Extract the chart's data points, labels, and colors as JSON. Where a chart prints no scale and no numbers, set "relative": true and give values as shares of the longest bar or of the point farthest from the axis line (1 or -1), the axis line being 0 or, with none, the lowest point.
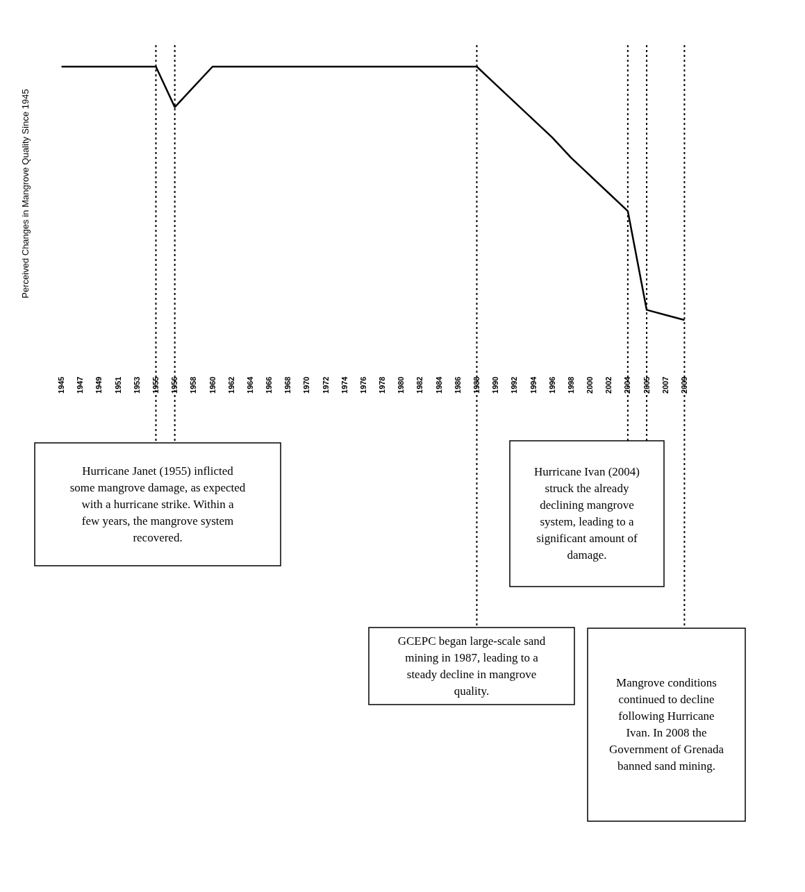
{
  "chart_data": {
    "type": "line",
    "relative": true,
    "ylabel": "Perceived Changes in Mangrove Quality Since 1945",
    "categories": [
      "1945",
      "1947",
      "1949",
      "1951",
      "1953",
      "1955",
      "1956",
      "1958",
      "1960",
      "1962",
      "1964",
      "1966",
      "1968",
      "1970",
      "1972",
      "1974",
      "1976",
      "1978",
      "1980",
      "1982",
      "1984",
      "1986",
      "1988",
      "1990",
      "1992",
      "1994",
      "1996",
      "1998",
      "2000",
      "2002",
      "2004",
      "2005",
      "2007",
      "2009"
    ],
    "series": [
      {
        "color": "#000000",
        "values": [
          1,
          1,
          1,
          1,
          1,
          1,
          0.84,
          0.92,
          1,
          1,
          1,
          1,
          1,
          1,
          1,
          1,
          1,
          1,
          1,
          1,
          1,
          1,
          1,
          0.93,
          0.86,
          0.79,
          0.72,
          0.64,
          0.57,
          0.5,
          0.43,
          0.04,
          0.02,
          0
        ]
      }
    ],
    "marker": "none",
    "line_style": "solid",
    "grid": false,
    "ref_lines": [
      {
        "axis": "x",
        "value": "1955",
        "color": "#000000",
        "line_style": "dotted"
      },
      {
        "axis": "x",
        "value": "1956",
        "color": "#000000",
        "line_style": "dotted"
      },
      {
        "axis": "x",
        "value": "1988",
        "color": "#000000",
        "line_style": "dotted"
      },
      {
        "axis": "x",
        "value": "2004",
        "color": "#000000",
        "line_style": "dotted"
      },
      {
        "axis": "x",
        "value": "2005",
        "color": "#000000",
        "line_style": "dotted"
      },
      {
        "axis": "x",
        "value": "2009",
        "color": "#000000",
        "line_style": "dotted"
      }
    ],
    "annotations": [
      "Hurricane Janet (1955) inflicted some mangrove damage, as expected with a hurricane strike. Within a few years, the mangrove system recovered.",
      "Hurricane Ivan (2004) struck the already declining mangrove system, leading to a significant amount of damage.",
      "GCEPC began large-scale sand mining in 1987, leading to a steady decline in mangrove quality.",
      "Mangrove conditions continued to decline following Hurricane Ivan. In 2008 the Government of Grenada banned sand mining."
    ]
  }
}
